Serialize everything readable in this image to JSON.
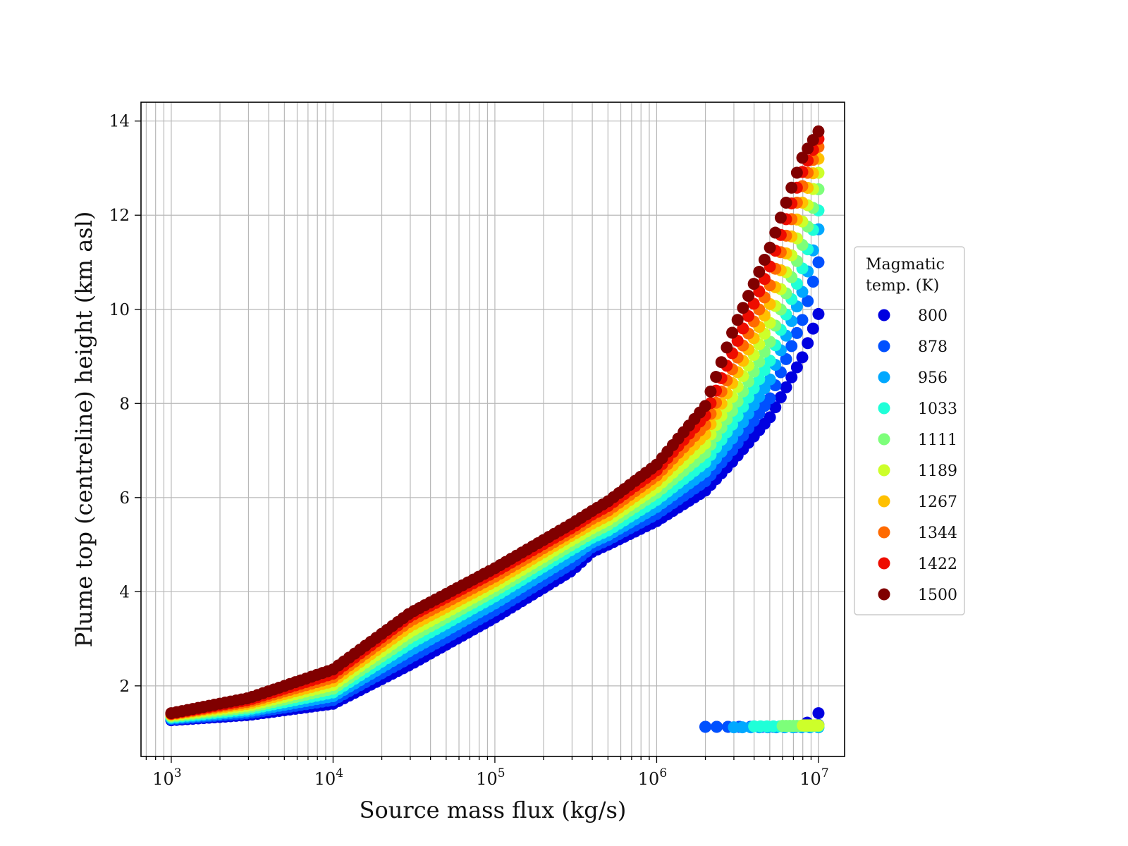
{
  "chart_data": {
    "type": "scatter",
    "xlabel": "Source mass flux (kg/s)",
    "ylabel": "Plume top (centreline) height (km asl)",
    "xscale": "log",
    "xlim": [
      650,
      14500000
    ],
    "ylim": [
      0.5,
      14.4
    ],
    "grid": true,
    "x_ticks": [
      1000,
      10000,
      100000,
      1000000,
      10000000
    ],
    "x_tick_labels": [
      {
        "base": "10",
        "exp": "3"
      },
      {
        "base": "10",
        "exp": "4"
      },
      {
        "base": "10",
        "exp": "5"
      },
      {
        "base": "10",
        "exp": "6"
      },
      {
        "base": "10",
        "exp": "7"
      }
    ],
    "y_ticks": [
      2,
      4,
      6,
      8,
      10,
      12,
      14
    ],
    "y_tick_labels": [
      "2",
      "4",
      "6",
      "8",
      "10",
      "12",
      "14"
    ],
    "legend": {
      "title_lines": [
        "Magmatic",
        "temp. (K)"
      ],
      "placement": "right, outside"
    },
    "series": [
      {
        "name": "800",
        "color": "#0000e0",
        "x": [
          1000,
          3000,
          10000,
          30000,
          100000,
          300000,
          400000,
          500000,
          1000000,
          2000000,
          3000000,
          5000000,
          8000000,
          10000000
        ],
        "y": [
          1.27,
          1.38,
          1.62,
          2.45,
          3.45,
          4.45,
          4.85,
          5.0,
          5.5,
          6.15,
          6.8,
          7.7,
          9.0,
          9.9
        ],
        "low_x": [
          2000000,
          3000000,
          5000000,
          8000000,
          10000000
        ],
        "low_y": [
          1.13,
          1.13,
          1.13,
          1.14,
          1.42
        ]
      },
      {
        "name": "878",
        "color": "#0050ff",
        "x": [
          1000,
          3000,
          10000,
          30000,
          100000,
          300000,
          400000,
          500000,
          1000000,
          2000000,
          3000000,
          5000000,
          8000000,
          10000000
        ],
        "y": [
          1.29,
          1.42,
          1.7,
          2.6,
          3.6,
          4.6,
          4.95,
          5.1,
          5.65,
          6.35,
          7.05,
          8.1,
          9.8,
          11.0
        ],
        "low_x": [
          2000000,
          3000000,
          5000000,
          8000000,
          10000000
        ],
        "low_y": [
          1.13,
          1.13,
          1.13,
          1.13,
          1.17
        ]
      },
      {
        "name": "956",
        "color": "#00a8ff",
        "x": [
          1000,
          3000,
          10000,
          30000,
          100000,
          300000,
          400000,
          500000,
          1000000,
          2000000,
          3000000,
          5000000,
          8000000,
          10000000
        ],
        "y": [
          1.31,
          1.46,
          1.78,
          2.75,
          3.75,
          4.75,
          5.05,
          5.2,
          5.8,
          6.55,
          7.3,
          8.5,
          10.4,
          11.7
        ],
        "low_x": [
          3000000,
          5000000,
          8000000,
          10000000
        ],
        "low_y": [
          1.12,
          1.12,
          1.12,
          1.12
        ]
      },
      {
        "name": "1033",
        "color": "#1fffd8",
        "x": [
          1000,
          3000,
          10000,
          30000,
          100000,
          300000,
          400000,
          500000,
          1000000,
          2000000,
          3000000,
          5000000,
          8000000,
          10000000
        ],
        "y": [
          1.33,
          1.5,
          1.86,
          2.9,
          3.9,
          4.9,
          5.15,
          5.3,
          5.95,
          6.75,
          7.6,
          8.9,
          10.9,
          12.1
        ],
        "low_x": [
          4000000,
          5000000,
          6000000,
          8000000,
          10000000
        ],
        "low_y": [
          1.14,
          1.14,
          1.14,
          1.14,
          1.14
        ]
      },
      {
        "name": "1111",
        "color": "#7dff7a",
        "x": [
          1000,
          3000,
          10000,
          30000,
          100000,
          300000,
          400000,
          500000,
          1000000,
          2000000,
          3000000,
          5000000,
          8000000,
          10000000
        ],
        "y": [
          1.35,
          1.54,
          1.94,
          3.03,
          4.02,
          5.0,
          5.25,
          5.42,
          6.1,
          6.95,
          7.9,
          9.3,
          11.4,
          12.55
        ],
        "low_x": [
          6000000,
          8000000,
          10000000
        ],
        "low_y": [
          1.15,
          1.15,
          1.15
        ]
      },
      {
        "name": "1189",
        "color": "#cdff2a",
        "x": [
          1000,
          3000,
          10000,
          30000,
          100000,
          300000,
          400000,
          500000,
          1000000,
          2000000,
          3000000,
          5000000,
          8000000,
          10000000
        ],
        "y": [
          1.37,
          1.58,
          2.02,
          3.15,
          4.12,
          5.1,
          5.35,
          5.52,
          6.22,
          7.15,
          8.2,
          9.7,
          11.9,
          12.9
        ],
        "low_x": [
          8000000,
          10000000
        ],
        "low_y": [
          1.16,
          1.16
        ]
      },
      {
        "name": "1267",
        "color": "#ffc000",
        "x": [
          1000,
          3000,
          10000,
          30000,
          100000,
          300000,
          400000,
          500000,
          1000000,
          2000000,
          3000000,
          5000000,
          8000000,
          10000000
        ],
        "y": [
          1.39,
          1.62,
          2.1,
          3.27,
          4.22,
          5.2,
          5.45,
          5.62,
          6.35,
          7.35,
          8.5,
          10.1,
          12.3,
          13.2
        ],
        "low_x": [],
        "low_y": []
      },
      {
        "name": "1344",
        "color": "#ff6a00",
        "x": [
          1000,
          3000,
          10000,
          30000,
          100000,
          300000,
          400000,
          500000,
          1000000,
          2000000,
          3000000,
          5000000,
          8000000,
          10000000
        ],
        "y": [
          1.4,
          1.66,
          2.18,
          3.38,
          4.32,
          5.28,
          5.55,
          5.72,
          6.47,
          7.55,
          8.8,
          10.5,
          12.65,
          13.45
        ],
        "low_x": [],
        "low_y": []
      },
      {
        "name": "1422",
        "color": "#ee0c00",
        "x": [
          1000,
          3000,
          10000,
          30000,
          100000,
          300000,
          400000,
          500000,
          1000000,
          2000000,
          3000000,
          5000000,
          8000000,
          10000000
        ],
        "y": [
          1.41,
          1.7,
          2.26,
          3.48,
          4.42,
          5.36,
          5.64,
          5.82,
          6.58,
          7.75,
          9.15,
          10.9,
          12.95,
          13.62
        ],
        "low_x": [],
        "low_y": []
      },
      {
        "name": "1500",
        "color": "#800000",
        "x": [
          1000,
          3000,
          10000,
          30000,
          100000,
          300000,
          400000,
          500000,
          1000000,
          2000000,
          3000000,
          5000000,
          8000000,
          10000000
        ],
        "y": [
          1.42,
          1.74,
          2.35,
          3.55,
          4.5,
          5.45,
          5.72,
          5.92,
          6.7,
          7.95,
          9.6,
          11.3,
          13.25,
          13.78
        ],
        "low_x": [],
        "low_y": []
      }
    ]
  }
}
